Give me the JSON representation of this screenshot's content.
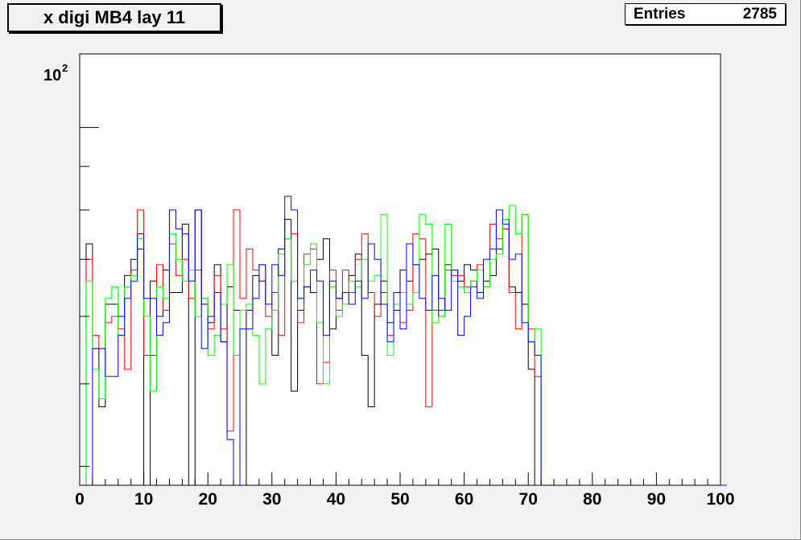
{
  "title": "x digi MB4 lay 11",
  "stats": {
    "label": "Entries",
    "value": "2785"
  },
  "chart_data": {
    "type": "histogram-step",
    "title": "x digi MB4 lay 11",
    "xlabel": "",
    "ylabel": "",
    "x_range": [
      0,
      100
    ],
    "y_scale": "log",
    "y_range": [
      38,
      122
    ],
    "x_tick_labels": [
      "0",
      "10",
      "20",
      "30",
      "40",
      "50",
      "60",
      "70",
      "80",
      "90",
      "100"
    ],
    "y_tick_label": {
      "base": "10",
      "exponent": "2"
    },
    "bin_width": 1,
    "series": [
      {
        "color": "#000000",
        "values": [
          0,
          73,
          55,
          47,
          62,
          62,
          60,
          67,
          70,
          72,
          0,
          66,
          60,
          68,
          64,
          64,
          77,
          0,
          80,
          62,
          59,
          69,
          56,
          65,
          61,
          0,
          61,
          67,
          66,
          62,
          54,
          72,
          78,
          49,
          61,
          65,
          64,
          70,
          74,
          58,
          63,
          64,
          67,
          71,
          54,
          47,
          62,
          66,
          59,
          61,
          68,
          66,
          69,
          70,
          71,
          72,
          60,
          69,
          68,
          66,
          69,
          68,
          64,
          66,
          67,
          72,
          78,
          65,
          64,
          62,
          52,
          0,
          0,
          0,
          0,
          0,
          0,
          0,
          0,
          0,
          0,
          0,
          0,
          0,
          0,
          0,
          0,
          0,
          0,
          0,
          0,
          0,
          0,
          0,
          0,
          0,
          0,
          0,
          0,
          0
        ]
      },
      {
        "color": "#ff0000",
        "values": [
          0,
          70,
          57,
          55,
          59,
          60,
          58,
          52,
          68,
          80,
          54,
          54,
          69,
          61,
          73,
          67,
          70,
          63,
          68,
          63,
          58,
          67,
          58,
          44,
          80,
          63,
          72,
          68,
          69,
          60,
          64,
          57,
          74,
          75,
          59,
          71,
          72,
          50,
          53,
          68,
          61,
          68,
          64,
          70,
          75,
          64,
          60,
          64,
          57,
          64,
          59,
          61,
          75,
          74,
          47,
          61,
          61,
          68,
          67,
          67,
          65,
          66,
          69,
          65,
          77,
          74,
          76,
          64,
          58,
          79,
          58,
          51,
          0,
          0,
          0,
          0,
          0,
          0,
          0,
          0,
          0,
          0,
          0,
          0,
          0,
          0,
          0,
          0,
          0,
          0,
          0,
          0,
          0,
          0,
          0,
          0,
          0,
          0,
          0,
          0,
          0
        ]
      },
      {
        "color": "#00ff00",
        "values": [
          0,
          66,
          52,
          48,
          63,
          65,
          57,
          65,
          67,
          74,
          60,
          49,
          65,
          63,
          75,
          70,
          66,
          68,
          60,
          63,
          54,
          57,
          62,
          69,
          54,
          61,
          62,
          57,
          50,
          58,
          61,
          71,
          74,
          66,
          63,
          69,
          73,
          59,
          50,
          65,
          60,
          62,
          66,
          65,
          70,
          66,
          67,
          79,
          54,
          62,
          64,
          62,
          64,
          79,
          77,
          59,
          60,
          77,
          66,
          65,
          64,
          66,
          68,
          65,
          70,
          71,
          78,
          81,
          75,
          79,
          56,
          58,
          0,
          0,
          0,
          0,
          0,
          0,
          0,
          0,
          0,
          0,
          0,
          0,
          0,
          0,
          0,
          0,
          0,
          0,
          0,
          0,
          0,
          0,
          0,
          0,
          0,
          0,
          0,
          0,
          0
        ]
      },
      {
        "color": "#0000ff",
        "values": [
          0,
          0,
          55,
          55,
          51,
          51,
          57,
          63,
          66,
          75,
          63,
          63,
          57,
          59,
          80,
          76,
          75,
          66,
          80,
          55,
          60,
          64,
          56,
          43,
          0,
          58,
          58,
          63,
          69,
          62,
          69,
          67,
          83,
          80,
          63,
          65,
          68,
          66,
          57,
          66,
          63,
          64,
          62,
          66,
          63,
          73,
          70,
          62,
          56,
          64,
          58,
          73,
          69,
          63,
          61,
          67,
          63,
          61,
          68,
          57,
          60,
          65,
          63,
          70,
          72,
          80,
          77,
          70,
          71,
          59,
          56,
          54,
          0,
          0,
          0,
          0,
          0,
          0,
          0,
          0,
          0,
          0,
          0,
          0,
          0,
          0,
          0,
          0,
          0,
          0,
          0,
          0,
          0,
          0,
          0,
          0,
          0,
          0,
          0,
          0,
          0
        ]
      }
    ]
  }
}
